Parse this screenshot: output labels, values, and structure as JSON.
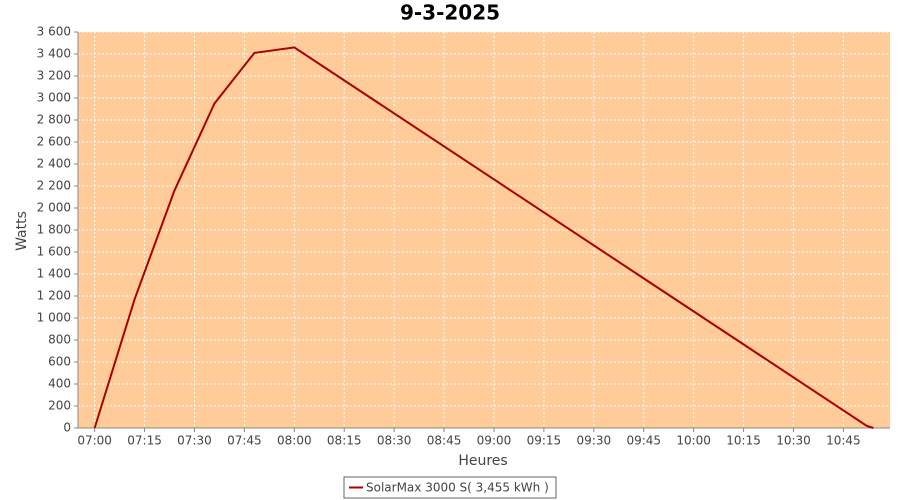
{
  "chart_data": {
    "type": "line",
    "title": "9-3-2025",
    "x_label": "Heures",
    "y_label": "Watts",
    "x": [
      "07:00",
      "07:12",
      "07:24",
      "07:36",
      "07:48",
      "08:00",
      "10:52",
      "10:54"
    ],
    "series": [
      {
        "name": "SolarMax 3000 S( 3,455 kWh )",
        "color": "#aa0000",
        "values": [
          0,
          1170,
          2160,
          2950,
          3410,
          3460,
          20,
          0
        ]
      }
    ],
    "xlim": [
      "06:55",
      "10:59"
    ],
    "xticks": [
      "07:00",
      "07:15",
      "07:30",
      "07:45",
      "08:00",
      "08:15",
      "08:30",
      "08:45",
      "09:00",
      "09:15",
      "09:30",
      "09:45",
      "10:00",
      "10:15",
      "10:30",
      "10:45"
    ],
    "ylim": [
      0,
      3600
    ],
    "yticks": [
      0,
      200,
      400,
      600,
      800,
      {
        "value": 1000,
        "label": "1 000"
      },
      {
        "value": 1200,
        "label": "1 200"
      },
      {
        "value": 1400,
        "label": "1 400"
      },
      {
        "value": 1600,
        "label": "1 600"
      },
      {
        "value": 1800,
        "label": "1 800"
      },
      {
        "value": 2000,
        "label": "2 000"
      },
      {
        "value": 2200,
        "label": "2 200"
      },
      {
        "value": 2400,
        "label": "2 400"
      },
      {
        "value": 2600,
        "label": "2 600"
      },
      {
        "value": 2800,
        "label": "2 800"
      },
      {
        "value": 3000,
        "label": "3 000"
      },
      {
        "value": 3200,
        "label": "3 200"
      },
      {
        "value": 3400,
        "label": "3 400"
      },
      {
        "value": 3600,
        "label": "3 600"
      }
    ],
    "grid": true,
    "plot_background": "#ffcc99"
  }
}
